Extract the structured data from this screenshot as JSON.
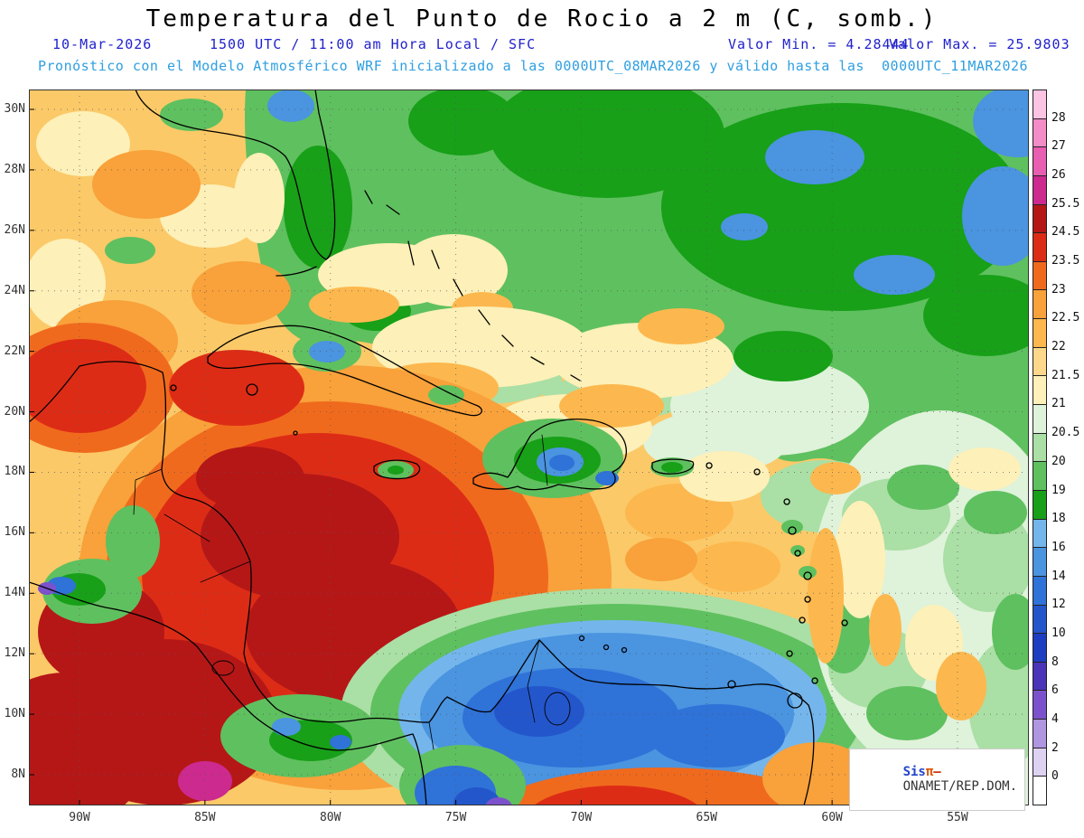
{
  "header": {
    "title": "Temperatura del Punto de Rocio a 2 m (C, somb.)",
    "date": "10-Mar-2026",
    "valid_time": "1500 UTC / 11:00 am Hora Local / SFC",
    "min_value": "Valor Min. = 4.28444",
    "max_value": "Valor Max. = 25.9803",
    "model_line": "Pronóstico con el Modelo Atmosférico WRF inicializado a las 0000UTC_08MAR2026 y válido hasta las  0000UTC_11MAR2026"
  },
  "map": {
    "lat_labels": [
      "30N",
      "28N",
      "26N",
      "24N",
      "22N",
      "20N",
      "18N",
      "16N",
      "14N",
      "12N",
      "10N",
      "8N"
    ],
    "lon_labels": [
      "90W",
      "85W",
      "80W",
      "75W",
      "70W",
      "65W",
      "60W",
      "55W"
    ]
  },
  "colorbar": {
    "unit": "C",
    "labels_top_to_bottom": [
      "28",
      "27",
      "26",
      "25.5",
      "24.5",
      "23.5",
      "23",
      "22.5",
      "22",
      "21.5",
      "21",
      "20.5",
      "20",
      "19",
      "18",
      "16",
      "14",
      "12",
      "10",
      "8",
      "6",
      "4",
      "2",
      "0"
    ],
    "cell_colors_top_to_bottom": [
      "#fbc4e2",
      "#f48cc8",
      "#e85eb0",
      "#cc2a8e",
      "#b51717",
      "#dd2c16",
      "#f06a1e",
      "#f9a13a",
      "#fcb84e",
      "#fdd88a",
      "#fdf0b8",
      "#dff2da",
      "#aadfa5",
      "#5fc05f",
      "#18a018",
      "#74b6ec",
      "#4a94e0",
      "#2f72d8",
      "#2456cb",
      "#1e3ec2",
      "#4b34b8",
      "#7c52cc",
      "#b095e0",
      "#ddd2f2",
      "#ffffff"
    ]
  },
  "watermark": {
    "brand_prefix": "Sis",
    "brand_pi": "π",
    "separator": "–",
    "org": "ONAMET/REP.DOM."
  }
}
